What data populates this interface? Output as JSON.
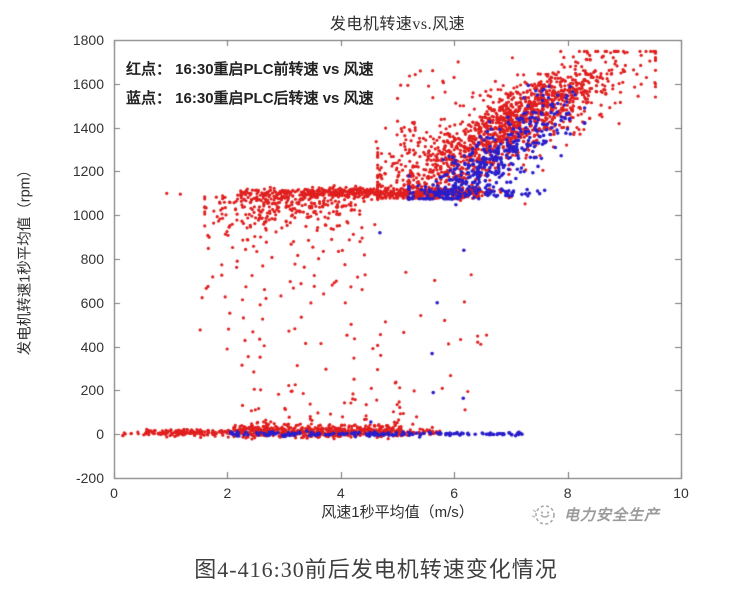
{
  "caption": {
    "text": "图4-416:30前后发电机转速变化情况"
  },
  "watermark": {
    "text": "电力安全生产",
    "icon": "dashed-circle-logo",
    "color": "#9b9b9b"
  },
  "chart_data": {
    "type": "scatter",
    "title": "发电机转速vs.风速",
    "annotations": [
      "红点： 16:30重启PLC前转速 vs 风速",
      "蓝点： 16:30重启PLC后转速 vs 风速"
    ],
    "xlabel": "风速1秒平均值（m/s）",
    "ylabel": "发电机转速1秒平均值（rpm）",
    "xlim": [
      0,
      10
    ],
    "ylim": [
      -200,
      1800
    ],
    "xticks": [
      0,
      2,
      4,
      6,
      8,
      10
    ],
    "yticks": [
      -200,
      0,
      200,
      400,
      600,
      800,
      1000,
      1200,
      1400,
      1600,
      1800
    ],
    "grid": false,
    "legend_position": "none",
    "axis_color": "#7a7a7a",
    "series": [
      {
        "name": "16:30重启PLC前转速 vs 风速",
        "color": "#e01f1f",
        "radius": 1.6
      },
      {
        "name": "16:30重启PLC后转速 vs 风速",
        "color": "#2a1ecb",
        "radius": 1.8
      }
    ],
    "rise_curve": [
      [
        4.65,
        1120
      ],
      [
        5.0,
        1150
      ],
      [
        5.5,
        1195
      ],
      [
        6.0,
        1260
      ],
      [
        6.5,
        1335
      ],
      [
        7.0,
        1410
      ],
      [
        7.5,
        1480
      ],
      [
        8.0,
        1550
      ],
      [
        8.5,
        1610
      ],
      [
        9.0,
        1655
      ],
      [
        9.55,
        1690
      ]
    ],
    "clusters": [
      {
        "series": 0,
        "n": 6,
        "x": {
          "dist": "uniform",
          "range": [
            0.08,
            0.55
          ]
        },
        "y": {
          "dist": "gauss",
          "mean": 8,
          "sd": 8,
          "clip": [
            -15,
            30
          ]
        }
      },
      {
        "series": 0,
        "n": 160,
        "x": {
          "dist": "uniform",
          "range": [
            0.55,
            2.1
          ]
        },
        "y": {
          "dist": "gauss",
          "mean": 8,
          "sd": 8,
          "clip": [
            -18,
            45
          ]
        }
      },
      {
        "series": 0,
        "n": 520,
        "x": {
          "dist": "uniform",
          "range": [
            2.1,
            5.05
          ]
        },
        "y": {
          "dist": "gauss",
          "mean": 14,
          "sd": 15,
          "clip": [
            -22,
            68
          ]
        }
      },
      {
        "series": 0,
        "n": 45,
        "x": {
          "dist": "uniform",
          "range": [
            5.0,
            5.75
          ]
        },
        "y": {
          "dist": "gauss",
          "mean": 8,
          "sd": 9,
          "clip": [
            -15,
            40
          ]
        }
      },
      {
        "series": 0,
        "n": 26,
        "x": {
          "dist": "uniform",
          "range": [
            2.3,
            5.4
          ]
        },
        "y": {
          "dist": "uniform",
          "range": [
            55,
            160
          ]
        }
      },
      {
        "series": 0,
        "n": 70,
        "x": {
          "dist": "uniform",
          "range": [
            2.2,
            3.3
          ]
        },
        "y": {
          "dist": "gauss",
          "mean": 1102,
          "sd": 10
        }
      },
      {
        "series": 0,
        "n": 500,
        "x": {
          "dist": "uniform",
          "range": [
            3.3,
            6.45
          ]
        },
        "y": {
          "dist": "gauss",
          "mean": 1103,
          "sd": 11
        }
      },
      {
        "series": 0,
        "n": 15,
        "x": {
          "dist": "uniform",
          "range": [
            6.45,
            7.05
          ]
        },
        "y": {
          "dist": "gauss",
          "mean": 1100,
          "sd": 9
        }
      },
      {
        "series": 0,
        "n": 300,
        "x": {
          "dist": "gauss",
          "mean": 3.0,
          "sd": 0.75,
          "clip": [
            1.6,
            4.6
          ]
        },
        "y": {
          "dist": "fold",
          "mean": 1092,
          "sd": 100,
          "clip": [
            800,
            1092
          ]
        }
      },
      {
        "series": 0,
        "n": 40,
        "x": {
          "dist": "uniform",
          "range": [
            1.55,
            4.5
          ]
        },
        "y": {
          "dist": "uniform",
          "range": [
            590,
            850
          ]
        }
      },
      {
        "series": 0,
        "n": 52,
        "x": {
          "dist": "uniform",
          "range": [
            1.9,
            5.0
          ]
        },
        "y": {
          "dist": "uniform",
          "range": [
            80,
            600
          ]
        }
      },
      {
        "series": 0,
        "n": 16,
        "x": {
          "dist": "uniform",
          "range": [
            5.0,
            6.7
          ]
        },
        "y": {
          "dist": "uniform",
          "range": [
            80,
            800
          ]
        }
      },
      {
        "series": 0,
        "n": 1500,
        "x": {
          "dist": "gauss",
          "mean": 6.9,
          "sd": 1.05,
          "clip": [
            4.65,
            9.55
          ]
        },
        "y": {
          "dist": "curve",
          "sd": 82,
          "offset": 0,
          "clip": [
            1078,
            1748
          ]
        }
      },
      {
        "series": 0,
        "n": 12,
        "x": {
          "dist": "uniform",
          "range": [
            5.0,
            6.3
          ]
        },
        "y": {
          "dist": "uniform",
          "range": [
            1500,
            1705
          ]
        }
      },
      {
        "series": 0,
        "n": 35,
        "x": {
          "dist": "uniform",
          "range": [
            4.6,
            5.4
          ]
        },
        "y": {
          "dist": "uniform",
          "range": [
            1150,
            1430
          ]
        }
      },
      {
        "series": 1,
        "n": 135,
        "x": {
          "dist": "uniform",
          "range": [
            2.05,
            5.8
          ]
        },
        "y": {
          "dist": "gauss",
          "mean": 0,
          "sd": 5,
          "clip": [
            -14,
            14
          ]
        }
      },
      {
        "series": 1,
        "n": 50,
        "x": {
          "dist": "uniform",
          "range": [
            5.8,
            7.2
          ]
        },
        "y": {
          "dist": "gauss",
          "mean": 0,
          "sd": 4,
          "clip": [
            -10,
            10
          ]
        }
      },
      {
        "series": 1,
        "n": 70,
        "x": {
          "dist": "uniform",
          "range": [
            5.6,
            7.1
          ]
        },
        "y": {
          "dist": "gauss",
          "mean": 1100,
          "sd": 10
        }
      },
      {
        "series": 1,
        "n": 8,
        "x": {
          "dist": "uniform",
          "range": [
            7.1,
            7.6
          ]
        },
        "y": {
          "dist": "gauss",
          "mean": 1100,
          "sd": 9
        }
      },
      {
        "series": 1,
        "n": 360,
        "x": {
          "dist": "gauss",
          "mean": 6.5,
          "sd": 0.78,
          "clip": [
            5.2,
            8.3
          ]
        },
        "y": {
          "dist": "curve",
          "sd": 62,
          "offset": -115,
          "clip": [
            1075,
            1560
          ]
        }
      },
      {
        "series": 1,
        "n": 55,
        "x": {
          "dist": "uniform",
          "range": [
            6.3,
            8.25
          ]
        },
        "y": {
          "dist": "curve",
          "sd": 55,
          "offset": -20,
          "clip": [
            1100,
            1620
          ]
        }
      }
    ],
    "points": [
      {
        "series": 0,
        "pts": [
          [
            0.93,
            1100
          ],
          [
            1.17,
            1096
          ],
          [
            7.25,
            1052
          ],
          [
            0.18,
            6
          ],
          [
            0.3,
            2
          ],
          [
            0.42,
            10
          ],
          [
            5.27,
            46
          ],
          [
            2.02,
            480
          ],
          [
            5.9,
            412
          ],
          [
            6.24,
            195
          ],
          [
            6.3,
            728
          ],
          [
            5.62,
            1660
          ],
          [
            6.07,
            1700
          ],
          [
            5.8,
            1612
          ],
          [
            2.6,
            -4
          ],
          [
            1.52,
            476
          ]
        ]
      },
      {
        "series": 1,
        "pts": [
          [
            5.7,
            600
          ],
          [
            5.61,
            368
          ],
          [
            5.63,
            190
          ],
          [
            6.16,
            164
          ],
          [
            6.17,
            840
          ],
          [
            6.03,
            1048
          ],
          [
            4.53,
            56
          ],
          [
            4.69,
            920
          ],
          [
            7.99,
            1517
          ],
          [
            7.44,
            1568
          ],
          [
            8.13,
            1550
          ],
          [
            3.4,
            14
          ],
          [
            2.52,
            6
          ],
          [
            5.92,
            1160
          ]
        ]
      }
    ]
  }
}
